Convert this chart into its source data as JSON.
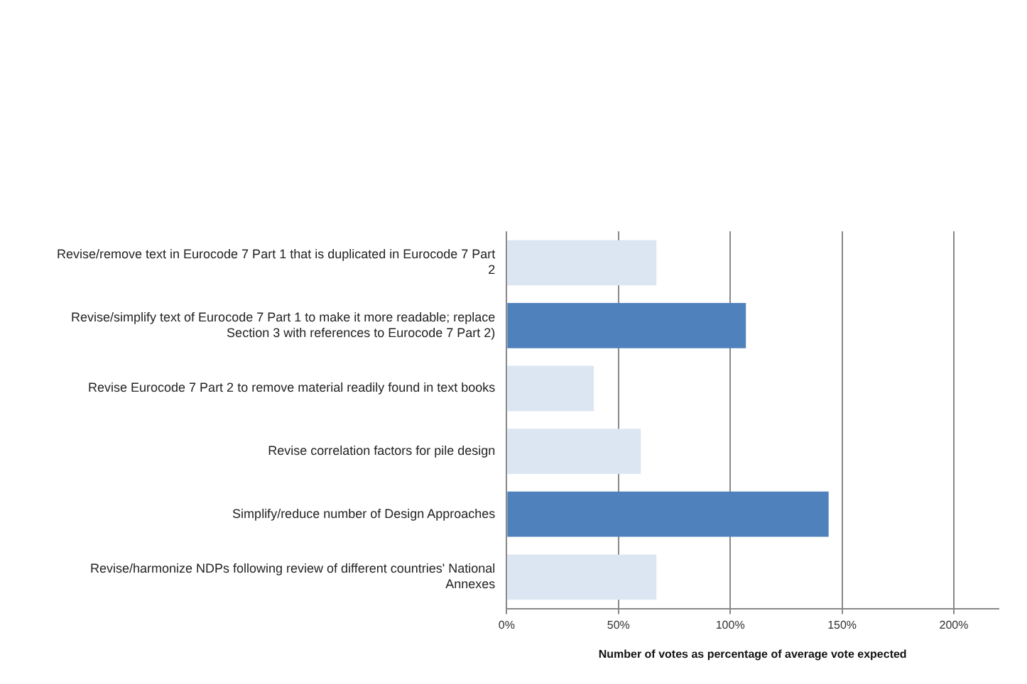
{
  "chart_data": {
    "type": "bar",
    "orientation": "horizontal",
    "xlabel": "Number of votes as percentage of average vote expected",
    "categories": [
      "Revise/remove text in Eurocode 7 Part 1 that is duplicated in Eurocode 7 Part 2",
      "Revise/simplify text of Eurocode 7 Part 1 to make it more readable; replace Section 3 with references to Eurocode 7 Part 2)",
      "Revise Eurocode 7 Part 2 to remove material readily found in text books",
      "Revise correlation factors for pile design",
      "Simplify/reduce number of Design Approaches",
      "Revise/harmonize NDPs following review of different countries' National Annexes"
    ],
    "values": [
      67,
      107,
      39,
      60,
      144,
      67
    ],
    "colors": [
      "#dce6f2",
      "#4f81bd",
      "#dce6f2",
      "#dce6f2",
      "#4f81bd",
      "#dce6f2"
    ],
    "xlim": [
      0,
      220
    ],
    "xticks": [
      {
        "value": 0,
        "label": "0%"
      },
      {
        "value": 50,
        "label": "50%"
      },
      {
        "value": 100,
        "label": "100%"
      },
      {
        "value": 150,
        "label": "150%"
      },
      {
        "value": 200,
        "label": "200%"
      }
    ],
    "grid": "x",
    "legend": false
  }
}
